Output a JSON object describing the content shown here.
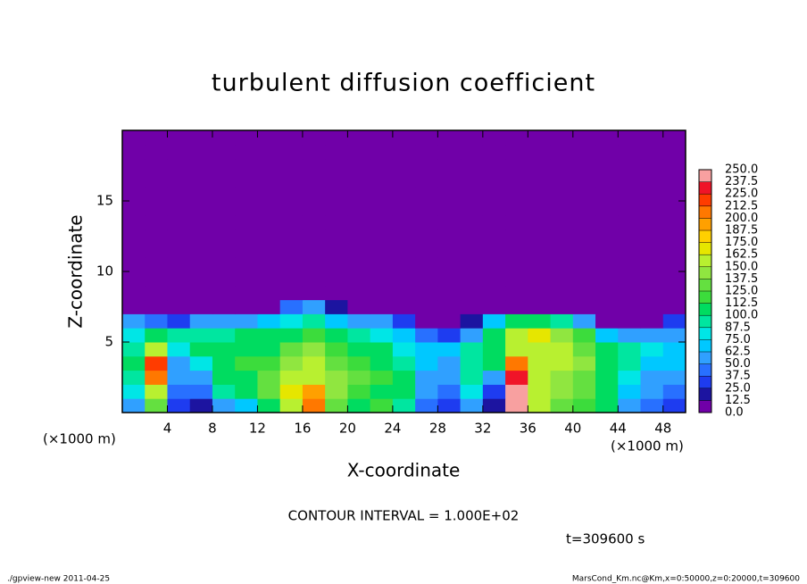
{
  "chart_data": {
    "type": "heatmap",
    "title": "turbulent diffusion coefficient",
    "xlabel": "X-coordinate",
    "ylabel": "Z-coordinate",
    "x_unit": "(×1000 m)",
    "y_unit": "(×1000 m)",
    "annotation": "CONTOUR INTERVAL = 1.000E+02",
    "time_label": "t=309600 s",
    "footer_left": "./gpview-new  2011-04-25",
    "footer_right": "MarsCond_Km.nc@Km,x=0:50000,z=0:20000,t=309600",
    "xlim": [
      0,
      50
    ],
    "ylim": [
      0,
      20
    ],
    "xticks": [
      4,
      8,
      12,
      16,
      20,
      24,
      28,
      32,
      36,
      40,
      44,
      48
    ],
    "yticks": [
      5,
      10,
      15
    ],
    "x": [
      1,
      3,
      5,
      7,
      9,
      11,
      13,
      15,
      17,
      19,
      21,
      23,
      25,
      27,
      29,
      31,
      33,
      35,
      37,
      39,
      41,
      43,
      45,
      47,
      49
    ],
    "y": [
      0.5,
      1.5,
      2.5,
      3.5,
      4.5,
      5.5,
      6.5,
      7.5,
      8.5,
      9.5,
      10.5,
      11.5,
      12.5,
      13.5,
      14.5,
      15.5,
      16.5,
      17.5,
      18.5,
      19.5
    ],
    "z": [
      [
        60,
        130,
        30,
        20,
        60,
        70,
        110,
        160,
        200,
        130,
        110,
        120,
        90,
        40,
        30,
        60,
        20,
        250,
        150,
        130,
        120,
        100,
        60,
        40,
        30
      ],
      [
        80,
        150,
        40,
        40,
        90,
        100,
        130,
        170,
        190,
        140,
        120,
        110,
        100,
        50,
        40,
        80,
        30,
        240,
        160,
        140,
        130,
        110,
        70,
        50,
        40
      ],
      [
        90,
        200,
        50,
        60,
        110,
        110,
        130,
        150,
        160,
        140,
        130,
        120,
        100,
        60,
        60,
        90,
        60,
        230,
        150,
        140,
        130,
        110,
        80,
        60,
        60
      ],
      [
        100,
        220,
        60,
        80,
        110,
        120,
        120,
        140,
        150,
        130,
        120,
        110,
        90,
        70,
        60,
        90,
        100,
        200,
        150,
        150,
        140,
        110,
        90,
        70,
        70
      ],
      [
        90,
        150,
        80,
        100,
        110,
        110,
        110,
        130,
        140,
        120,
        110,
        100,
        80,
        70,
        70,
        90,
        110,
        160,
        160,
        150,
        130,
        100,
        90,
        80,
        70
      ],
      [
        80,
        100,
        90,
        90,
        90,
        100,
        100,
        110,
        120,
        100,
        90,
        80,
        70,
        40,
        30,
        60,
        100,
        150,
        170,
        140,
        120,
        70,
        60,
        60,
        60
      ],
      [
        50,
        40,
        30,
        60,
        60,
        60,
        70,
        80,
        90,
        70,
        60,
        50,
        30,
        10,
        10,
        20,
        70,
        110,
        100,
        90,
        60,
        10,
        10,
        10,
        30
      ],
      [
        0,
        0,
        0,
        0,
        0,
        0,
        5,
        40,
        50,
        20,
        0,
        0,
        0,
        0,
        0,
        0,
        0,
        0,
        0,
        0,
        0,
        0,
        0,
        0,
        0
      ],
      [
        0,
        0,
        0,
        0,
        0,
        0,
        0,
        0,
        0,
        0,
        0,
        0,
        0,
        0,
        0,
        0,
        0,
        0,
        0,
        0,
        0,
        0,
        0,
        0,
        0
      ],
      [
        0,
        0,
        0,
        0,
        0,
        0,
        0,
        0,
        0,
        0,
        0,
        0,
        0,
        0,
        0,
        0,
        0,
        0,
        0,
        0,
        0,
        0,
        0,
        0,
        0
      ],
      [
        0,
        0,
        0,
        0,
        0,
        0,
        0,
        0,
        0,
        0,
        0,
        0,
        0,
        0,
        0,
        0,
        0,
        0,
        0,
        0,
        0,
        0,
        0,
        0,
        0
      ],
      [
        0,
        0,
        0,
        0,
        0,
        0,
        0,
        0,
        0,
        0,
        0,
        0,
        0,
        0,
        0,
        0,
        0,
        0,
        0,
        0,
        0,
        0,
        0,
        0,
        0
      ],
      [
        0,
        0,
        0,
        0,
        0,
        0,
        0,
        0,
        0,
        0,
        0,
        0,
        0,
        0,
        0,
        0,
        0,
        0,
        0,
        0,
        0,
        0,
        0,
        0,
        0
      ],
      [
        0,
        0,
        0,
        0,
        0,
        0,
        0,
        0,
        0,
        0,
        0,
        0,
        0,
        0,
        0,
        0,
        0,
        0,
        0,
        0,
        0,
        0,
        0,
        0,
        0
      ],
      [
        0,
        0,
        0,
        0,
        0,
        0,
        0,
        0,
        0,
        0,
        0,
        0,
        0,
        0,
        0,
        0,
        0,
        0,
        0,
        0,
        0,
        0,
        0,
        0,
        0
      ],
      [
        0,
        0,
        0,
        0,
        0,
        0,
        0,
        0,
        0,
        0,
        0,
        0,
        0,
        0,
        0,
        0,
        0,
        0,
        0,
        0,
        0,
        0,
        0,
        0,
        0
      ],
      [
        0,
        0,
        0,
        0,
        0,
        0,
        0,
        0,
        0,
        0,
        0,
        0,
        0,
        0,
        0,
        0,
        0,
        0,
        0,
        0,
        0,
        0,
        0,
        0,
        0
      ],
      [
        0,
        0,
        0,
        0,
        0,
        0,
        0,
        0,
        0,
        0,
        0,
        0,
        0,
        0,
        0,
        0,
        0,
        0,
        0,
        0,
        0,
        0,
        0,
        0,
        0
      ],
      [
        0,
        0,
        0,
        0,
        0,
        0,
        0,
        0,
        0,
        0,
        0,
        0,
        0,
        0,
        0,
        0,
        0,
        0,
        0,
        0,
        0,
        0,
        0,
        0,
        0
      ],
      [
        0,
        0,
        0,
        0,
        0,
        0,
        0,
        0,
        0,
        0,
        0,
        0,
        0,
        0,
        0,
        0,
        0,
        0,
        0,
        0,
        0,
        0,
        0,
        0,
        0
      ]
    ],
    "colorbar_ticks": [
      {
        "value": 0,
        "label": "0.0"
      },
      {
        "value": 12.5,
        "label": "12.5"
      },
      {
        "value": 25,
        "label": "25.0"
      },
      {
        "value": 37.5,
        "label": "37.5"
      },
      {
        "value": 50,
        "label": "50.0"
      },
      {
        "value": 62.5,
        "label": "62.5"
      },
      {
        "value": 75,
        "label": "75.0"
      },
      {
        "value": 87.5,
        "label": "87.5"
      },
      {
        "value": 100,
        "label": "100.0"
      },
      {
        "value": 112.5,
        "label": "112.5"
      },
      {
        "value": 125,
        "label": "125.0"
      },
      {
        "value": 137.5,
        "label": "137.5"
      },
      {
        "value": 150,
        "label": "150.0"
      },
      {
        "value": 162.5,
        "label": "162.5"
      },
      {
        "value": 175,
        "label": "175.0"
      },
      {
        "value": 187.5,
        "label": "187.5"
      },
      {
        "value": 200,
        "label": "200.0"
      },
      {
        "value": 212.5,
        "label": "212.5"
      },
      {
        "value": 225,
        "label": "225.0"
      },
      {
        "value": 237.5,
        "label": "237.5"
      },
      {
        "value": 250,
        "label": "250.0"
      }
    ],
    "colors": [
      "#7000a8",
      "#1c14a0",
      "#1e3cf0",
      "#2870ff",
      "#30a0ff",
      "#00c8ff",
      "#00e6e6",
      "#00e6a0",
      "#00dc60",
      "#3cdc3c",
      "#64e040",
      "#90e640",
      "#b8f030",
      "#e6e600",
      "#ffd000",
      "#ffa000",
      "#ff7800",
      "#ff3c00",
      "#f01428",
      "#f8a0a0"
    ]
  }
}
